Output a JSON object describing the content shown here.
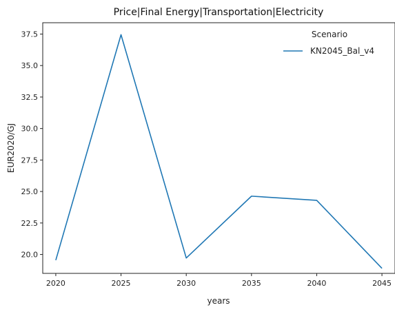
{
  "chart_data": {
    "type": "line",
    "title": "Price|Final Energy|Transportation|Electricity",
    "xlabel": "years",
    "ylabel": "EUR2020/GJ",
    "x": [
      2020,
      2025,
      2030,
      2035,
      2040,
      2045
    ],
    "xticks": [
      "2020",
      "2025",
      "2030",
      "2035",
      "2040",
      "2045"
    ],
    "yticks": [
      "20.0",
      "22.5",
      "25.0",
      "27.5",
      "30.0",
      "32.5",
      "35.0",
      "37.5"
    ],
    "xlim": [
      2019,
      2046
    ],
    "ylim": [
      18.5,
      38.4
    ],
    "grid": false,
    "legend": {
      "title": "Scenario",
      "placement": "top-right"
    },
    "series": [
      {
        "name": "KN2045_Bal_v4",
        "color": "#1f77b4",
        "values": [
          19.55,
          37.45,
          19.72,
          24.63,
          24.3,
          18.9
        ]
      }
    ]
  }
}
